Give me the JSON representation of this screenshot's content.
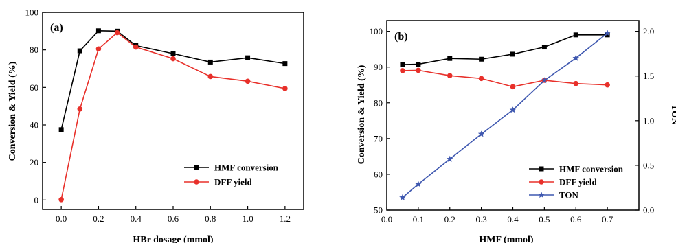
{
  "colors": {
    "hmf": "#000000",
    "dff": "#e8302a",
    "ton": "#3f58b0"
  },
  "chart_data": [
    {
      "type": "line",
      "panel_label": "(a)",
      "xlabel": "HBr dosage (mmol)",
      "ylabel": "Conversion & Yield (%)",
      "xlim": [
        -0.1,
        1.3
      ],
      "ylim": [
        -5,
        100
      ],
      "xticks": [
        0.0,
        0.2,
        0.4,
        0.6,
        0.8,
        1.0,
        1.2
      ],
      "xtick_labels": [
        "0.0",
        "0.2",
        "0.4",
        "0.6",
        "0.8",
        "1.0",
        "1.2"
      ],
      "yticks": [
        0,
        20,
        40,
        60,
        80,
        100
      ],
      "ytick_labels": [
        "0",
        "20",
        "40",
        "60",
        "80",
        "100"
      ],
      "legend_position": "bottom-right",
      "series": [
        {
          "name": "HMF conversion",
          "marker": "square",
          "color": "#000000",
          "x": [
            0.0,
            0.1,
            0.2,
            0.3,
            0.4,
            0.6,
            0.8,
            1.0,
            1.2
          ],
          "y": [
            37.5,
            79.5,
            90.2,
            90.0,
            82.3,
            78.0,
            73.5,
            75.8,
            72.7
          ]
        },
        {
          "name": "DFF yield",
          "marker": "circle",
          "color": "#e8302a",
          "x": [
            0.0,
            0.1,
            0.2,
            0.3,
            0.4,
            0.6,
            0.8,
            1.0,
            1.2
          ],
          "y": [
            0.2,
            48.5,
            80.5,
            89.2,
            81.5,
            75.3,
            65.8,
            63.3,
            59.4
          ]
        }
      ]
    },
    {
      "type": "line",
      "panel_label": "(b)",
      "xlabel": "HMF (mmol)",
      "ylabel": "Conversion & Yield (%)",
      "y2label": "TON",
      "xlim": [
        0.0,
        0.8
      ],
      "ylim": [
        50,
        103
      ],
      "y2lim": [
        0.0,
        2.12
      ],
      "xticks": [
        0.0,
        0.1,
        0.2,
        0.3,
        0.4,
        0.5,
        0.6,
        0.7
      ],
      "xtick_labels": [
        "0.0",
        "0.1",
        "0.2",
        "0.3",
        "0.4",
        "0.5",
        "0.6",
        "0.7"
      ],
      "yticks": [
        50,
        60,
        70,
        80,
        90,
        100
      ],
      "ytick_labels": [
        "50",
        "60",
        "70",
        "80",
        "90",
        "100"
      ],
      "y2ticks": [
        0.0,
        0.5,
        1.0,
        1.5,
        2.0
      ],
      "y2tick_labels": [
        "0.0",
        "0.5",
        "1.0",
        "1.5",
        "2.0"
      ],
      "legend_position": "bottom-right",
      "series": [
        {
          "name": "HMF conversion",
          "marker": "square",
          "color": "#000000",
          "axis": "left",
          "x": [
            0.05,
            0.1,
            0.2,
            0.3,
            0.4,
            0.5,
            0.6,
            0.7
          ],
          "y": [
            90.7,
            90.8,
            92.4,
            92.2,
            93.6,
            95.6,
            99.0,
            99.0
          ]
        },
        {
          "name": "DFF yield",
          "marker": "circle",
          "color": "#e8302a",
          "axis": "left",
          "x": [
            0.05,
            0.1,
            0.2,
            0.3,
            0.4,
            0.5,
            0.6,
            0.7
          ],
          "y": [
            89.0,
            89.1,
            87.6,
            86.8,
            84.5,
            86.3,
            85.4,
            85.0
          ]
        },
        {
          "name": "TON",
          "marker": "star",
          "color": "#3f58b0",
          "axis": "right",
          "x": [
            0.05,
            0.1,
            0.2,
            0.3,
            0.4,
            0.5,
            0.6,
            0.7
          ],
          "y": [
            0.14,
            0.29,
            0.57,
            0.85,
            1.12,
            1.45,
            1.7,
            1.98
          ]
        }
      ]
    }
  ]
}
